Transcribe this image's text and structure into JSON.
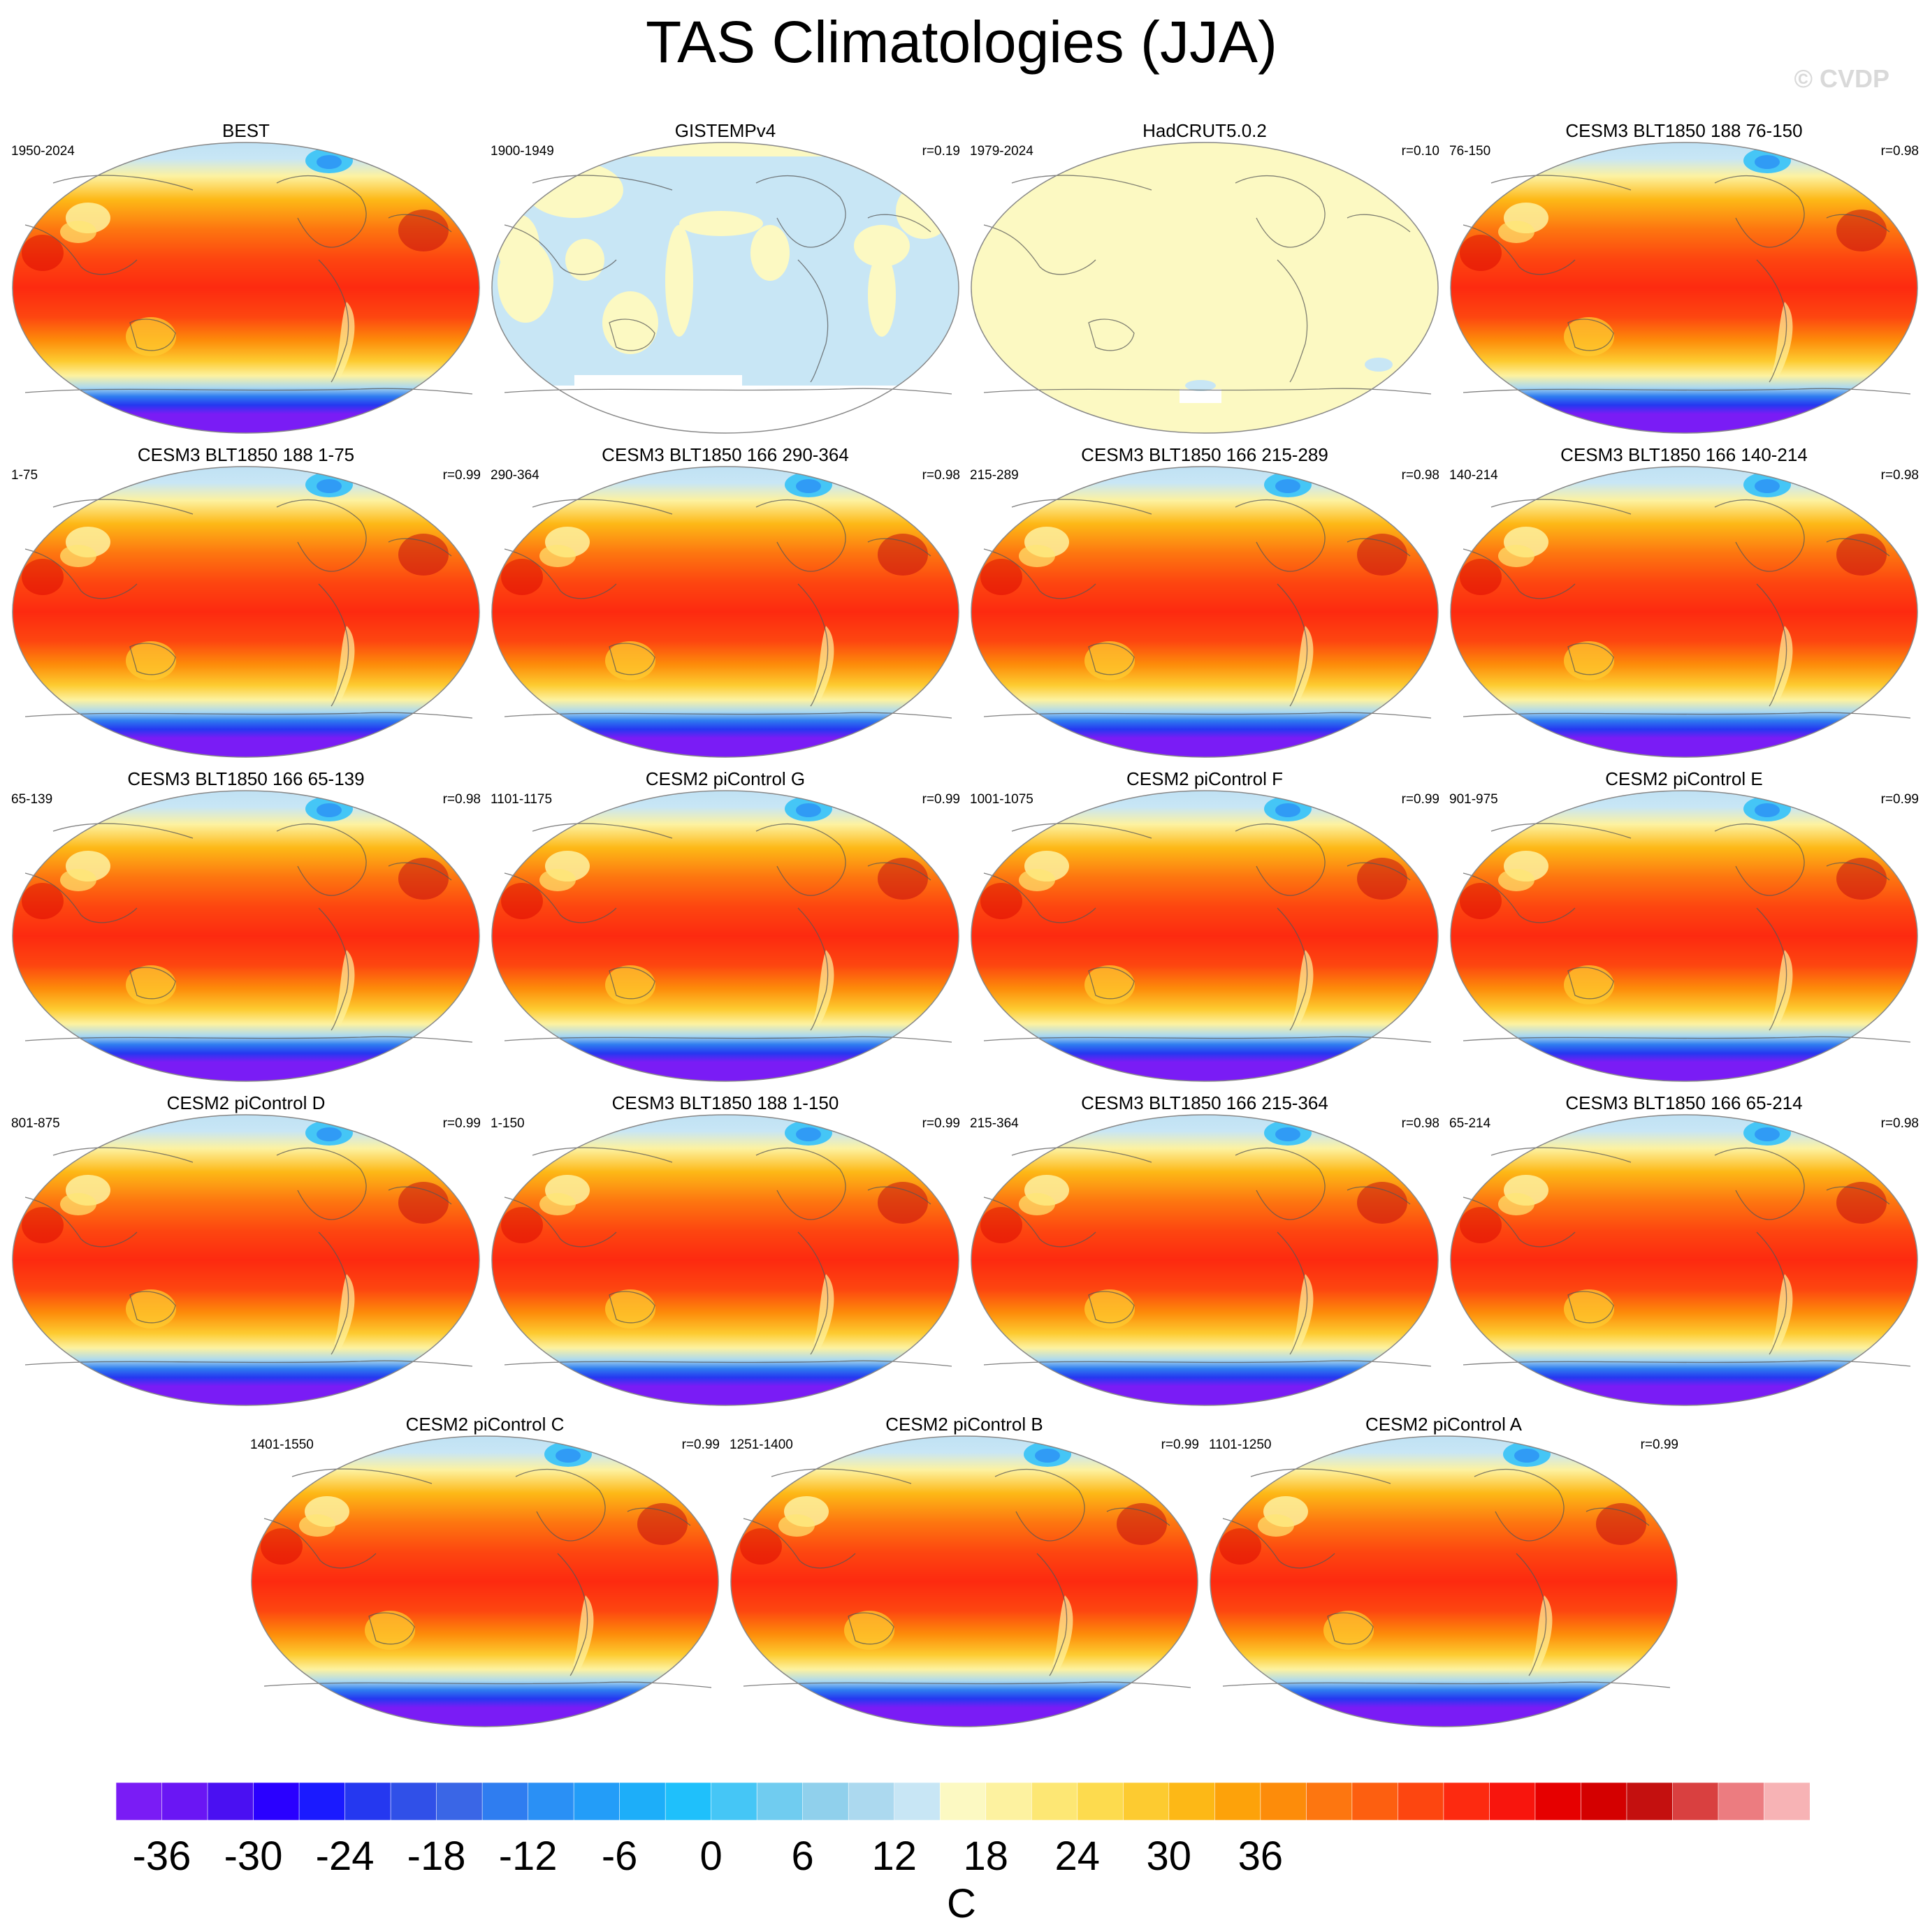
{
  "title": "TAS Climatologies (JJA)",
  "copyright": "© CVDP",
  "colorbar": {
    "colors": [
      "#7a1cf5",
      "#6a16f4",
      "#4a10f2",
      "#2a00ff",
      "#1a1aff",
      "#2538f0",
      "#3050e8",
      "#3a66e6",
      "#2f7df0",
      "#2a90f5",
      "#239df8",
      "#1daef9",
      "#1fc0fb",
      "#45c6f6",
      "#70ccf0",
      "#90d0ec",
      "#acd9ef",
      "#c8e6f5",
      "#fcf9c2",
      "#fdf2a0",
      "#fde774",
      "#fddb4e",
      "#fdcb30",
      "#fdb816",
      "#fda20a",
      "#fd8c0a",
      "#fd7610",
      "#fd5f10",
      "#fd4610",
      "#fd2a10",
      "#f8150d",
      "#e60000",
      "#d40000",
      "#c4100f",
      "#d94040",
      "#ec7c80",
      "#f7b3b5"
    ],
    "tick_labels": [
      "-36",
      "-30",
      "-24",
      "-18",
      "-12",
      "-6",
      "0",
      "6",
      "12",
      "18",
      "24",
      "30",
      "36"
    ],
    "unit": "C"
  },
  "panels": [
    {
      "title": "BEST",
      "period": "1950-2024",
      "r": "",
      "kind": "full"
    },
    {
      "title": "GISTEMPv4",
      "period": "1900-1949",
      "r": "r=0.19",
      "kind": "gistemp"
    },
    {
      "title": "HadCRUT5.0.2",
      "period": "1979-2024",
      "r": "r=0.10",
      "kind": "hadcrut"
    },
    {
      "title": "CESM3 BLT1850 188 76-150",
      "period": "76-150",
      "r": "r=0.98",
      "kind": "full"
    },
    {
      "title": "CESM3 BLT1850 188 1-75",
      "period": "1-75",
      "r": "r=0.99",
      "kind": "full"
    },
    {
      "title": "CESM3 BLT1850 166 290-364",
      "period": "290-364",
      "r": "r=0.98",
      "kind": "full"
    },
    {
      "title": "CESM3 BLT1850 166 215-289",
      "period": "215-289",
      "r": "r=0.98",
      "kind": "full"
    },
    {
      "title": "CESM3 BLT1850 166 140-214",
      "period": "140-214",
      "r": "r=0.98",
      "kind": "full"
    },
    {
      "title": "CESM3 BLT1850 166 65-139",
      "period": "65-139",
      "r": "r=0.98",
      "kind": "full"
    },
    {
      "title": "CESM2 piControl G",
      "period": "1101-1175",
      "r": "r=0.99",
      "kind": "full"
    },
    {
      "title": "CESM2 piControl F",
      "period": "1001-1075",
      "r": "r=0.99",
      "kind": "full"
    },
    {
      "title": "CESM2 piControl E",
      "period": "901-975",
      "r": "r=0.99",
      "kind": "full"
    },
    {
      "title": "CESM2 piControl D",
      "period": "801-875",
      "r": "r=0.99",
      "kind": "full"
    },
    {
      "title": "CESM3 BLT1850 188 1-150",
      "period": "1-150",
      "r": "r=0.99",
      "kind": "full"
    },
    {
      "title": "CESM3 BLT1850 166 215-364",
      "period": "215-364",
      "r": "r=0.98",
      "kind": "full"
    },
    {
      "title": "CESM3 BLT1850 166 65-214",
      "period": "65-214",
      "r": "r=0.98",
      "kind": "full"
    },
    {
      "title": "CESM2 piControl C",
      "period": "1401-1550",
      "r": "r=0.99",
      "kind": "full"
    },
    {
      "title": "CESM2 piControl B",
      "period": "1251-1400",
      "r": "r=0.99",
      "kind": "full"
    },
    {
      "title": "CESM2 piControl A",
      "period": "1101-1250",
      "r": "r=0.99",
      "kind": "full"
    }
  ]
}
